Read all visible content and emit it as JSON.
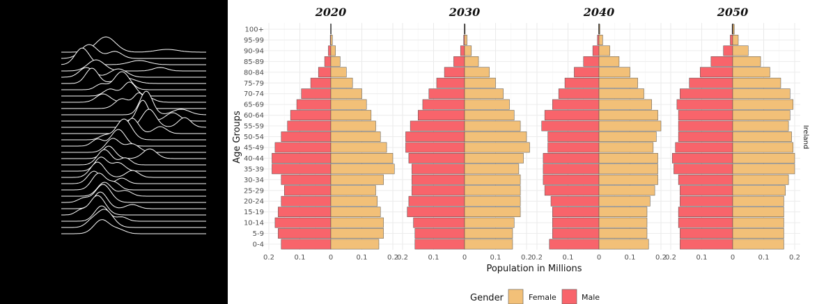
{
  "chart_data": {
    "type": "bar",
    "subtype": "population-pyramid",
    "panels": [
      "2020",
      "2030",
      "2040",
      "2050"
    ],
    "facet_label": "Ireland",
    "xlabel": "Population in Millions",
    "ylabel": "Age Groups",
    "xlim": [
      -0.2,
      0.2
    ],
    "x_tick_labels": [
      "0.2",
      "0.1",
      "0",
      "0.1",
      "0.2"
    ],
    "grid": true,
    "legend": {
      "title": "Gender",
      "position": "bottom",
      "entries": [
        "Female",
        "Male"
      ]
    },
    "colors": {
      "Female": "#F2C078",
      "Male": "#F8646B"
    },
    "categories": [
      "0-4",
      "5-9",
      "10-14",
      "15-19",
      "20-24",
      "25-29",
      "30-34",
      "35-39",
      "40-44",
      "45-49",
      "50-54",
      "55-59",
      "60-64",
      "65-69",
      "70-74",
      "75-79",
      "80-84",
      "85-89",
      "90-94",
      "95-99",
      "100+"
    ],
    "series": [
      {
        "panel": "2020",
        "name": "Male",
        "values": [
          0.16,
          0.17,
          0.18,
          0.17,
          0.16,
          0.15,
          0.16,
          0.19,
          0.19,
          0.18,
          0.16,
          0.14,
          0.13,
          0.11,
          0.095,
          0.065,
          0.04,
          0.02,
          0.008,
          0.002,
          0.0005
        ]
      },
      {
        "panel": "2020",
        "name": "Female",
        "values": [
          0.155,
          0.17,
          0.17,
          0.16,
          0.15,
          0.145,
          0.17,
          0.205,
          0.2,
          0.18,
          0.16,
          0.145,
          0.13,
          0.115,
          0.1,
          0.07,
          0.05,
          0.03,
          0.015,
          0.005,
          0.001
        ]
      },
      {
        "panel": "2030",
        "name": "Male",
        "values": [
          0.16,
          0.16,
          0.165,
          0.185,
          0.18,
          0.17,
          0.17,
          0.17,
          0.18,
          0.19,
          0.19,
          0.175,
          0.15,
          0.135,
          0.115,
          0.09,
          0.065,
          0.035,
          0.013,
          0.003,
          0.0007
        ]
      },
      {
        "panel": "2030",
        "name": "Female",
        "values": [
          0.155,
          0.155,
          0.16,
          0.18,
          0.18,
          0.18,
          0.18,
          0.175,
          0.19,
          0.21,
          0.2,
          0.18,
          0.16,
          0.145,
          0.125,
          0.1,
          0.08,
          0.045,
          0.022,
          0.008,
          0.002
        ]
      },
      {
        "panel": "2040",
        "name": "Male",
        "values": [
          0.16,
          0.15,
          0.15,
          0.15,
          0.155,
          0.175,
          0.18,
          0.18,
          0.18,
          0.165,
          0.165,
          0.185,
          0.175,
          0.15,
          0.13,
          0.11,
          0.08,
          0.05,
          0.02,
          0.005,
          0.001
        ]
      },
      {
        "panel": "2040",
        "name": "Female",
        "values": [
          0.16,
          0.155,
          0.155,
          0.155,
          0.165,
          0.18,
          0.19,
          0.19,
          0.19,
          0.175,
          0.185,
          0.2,
          0.19,
          0.17,
          0.145,
          0.125,
          0.1,
          0.065,
          0.035,
          0.012,
          0.003
        ]
      },
      {
        "panel": "2050",
        "name": "Male",
        "values": [
          0.17,
          0.17,
          0.175,
          0.175,
          0.17,
          0.17,
          0.175,
          0.19,
          0.195,
          0.185,
          0.175,
          0.175,
          0.175,
          0.18,
          0.17,
          0.14,
          0.105,
          0.07,
          0.03,
          0.008,
          0.002
        ]
      },
      {
        "panel": "2050",
        "name": "Female",
        "values": [
          0.165,
          0.165,
          0.165,
          0.165,
          0.165,
          0.17,
          0.18,
          0.2,
          0.2,
          0.195,
          0.19,
          0.18,
          0.185,
          0.195,
          0.185,
          0.155,
          0.12,
          0.09,
          0.05,
          0.018,
          0.005
        ]
      }
    ]
  }
}
